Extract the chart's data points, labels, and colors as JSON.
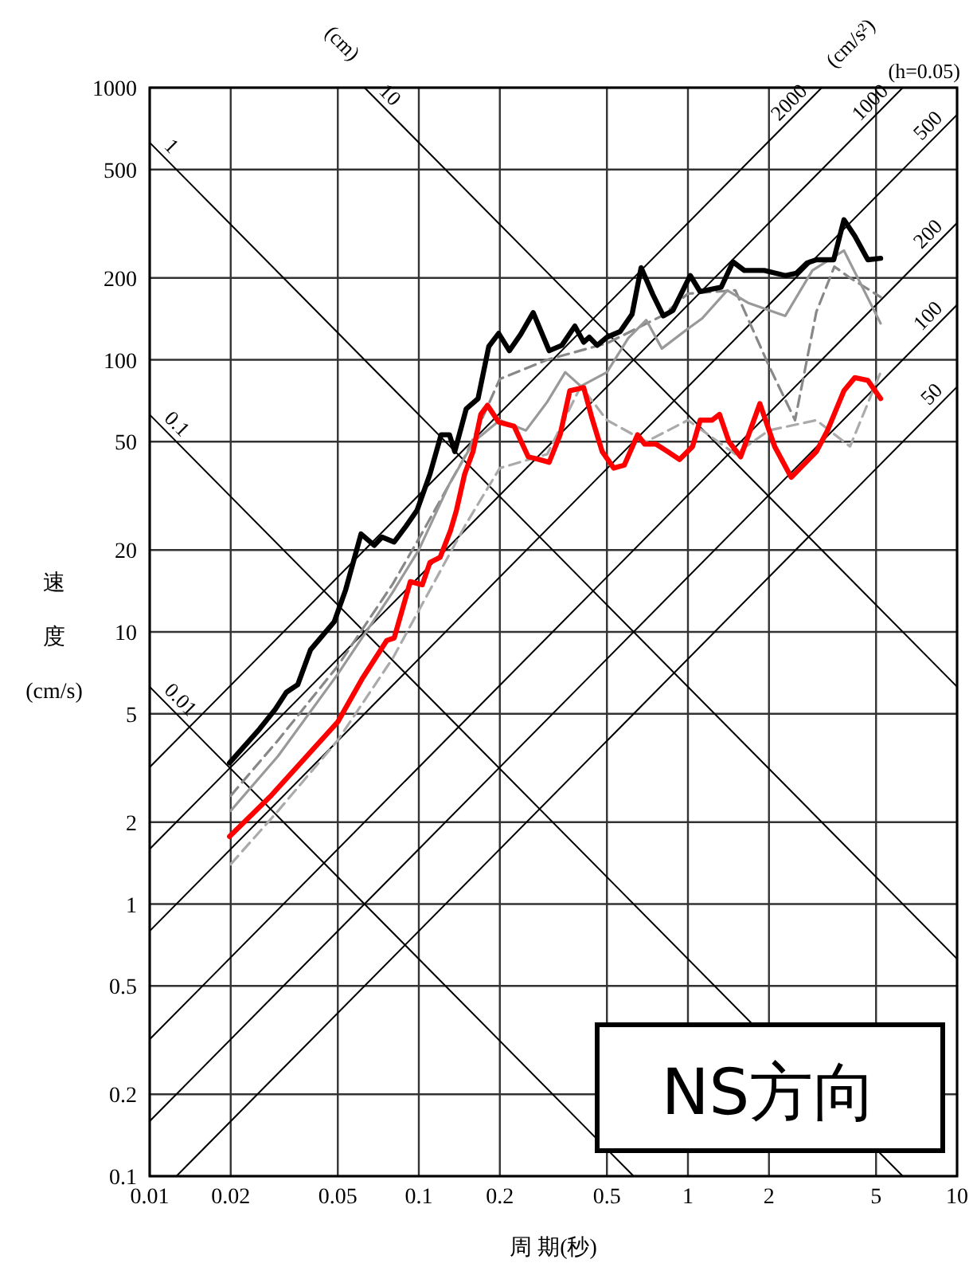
{
  "chart_data": {
    "type": "line",
    "log": "xy",
    "grid": true,
    "xlim": [
      0.01,
      10
    ],
    "ylim": [
      0.1,
      1000
    ],
    "xticks": [
      0.01,
      0.02,
      0.05,
      0.1,
      0.2,
      0.5,
      1,
      2,
      5,
      10
    ],
    "yticks": [
      0.1,
      0.2,
      0.5,
      1,
      2,
      5,
      10,
      20,
      50,
      100,
      200,
      500,
      1000
    ],
    "xlabel": "周 期(秒)",
    "ylabel": "速度(cm/s)",
    "annotations": [
      "(cm)",
      "(cm/s²)",
      "(h=0.05)",
      "NS方向"
    ],
    "series": [
      {
        "color": "#000000",
        "line_style": "solid",
        "x": [
          0.0198,
          0.0256,
          0.0293,
          0.0322,
          0.0355,
          0.0396,
          0.0485,
          0.0535,
          0.061,
          0.0683,
          0.073,
          0.081,
          0.0897,
          0.0985,
          0.11,
          0.121,
          0.13,
          0.136,
          0.15,
          0.166,
          0.182,
          0.198,
          0.217,
          0.239,
          0.266,
          0.305,
          0.34,
          0.38,
          0.41,
          0.43,
          0.46,
          0.5,
          0.56,
          0.62,
          0.67,
          0.74,
          0.81,
          0.88,
          1.02,
          1.11,
          1.33,
          1.47,
          1.62,
          1.92,
          2.3,
          2.53,
          2.77,
          3.0,
          3.48,
          3.8,
          4.17,
          4.66,
          5.2
        ],
        "values": [
          3.3,
          4.4,
          5.2,
          6.0,
          6.4,
          8.6,
          10.9,
          14.3,
          22.9,
          20.8,
          22.3,
          21.4,
          24.5,
          28,
          38,
          53,
          53,
          46,
          66,
          72,
          112,
          125,
          108,
          124,
          149,
          108,
          113,
          133,
          116,
          121,
          113,
          121,
          127,
          147,
          218,
          174,
          145,
          152,
          204,
          178,
          185,
          229,
          213,
          213,
          204,
          208,
          227,
          233,
          233,
          327,
          285,
          233,
          236
        ]
      },
      {
        "color": "#ff0000",
        "line_style": "solid",
        "x": [
          0.0198,
          0.028,
          0.05,
          0.062,
          0.076,
          0.081,
          0.093,
          0.103,
          0.11,
          0.12,
          0.131,
          0.138,
          0.148,
          0.159,
          0.17,
          0.18,
          0.198,
          0.226,
          0.255,
          0.28,
          0.305,
          0.335,
          0.364,
          0.41,
          0.44,
          0.48,
          0.53,
          0.58,
          0.65,
          0.69,
          0.76,
          0.84,
          0.93,
          1.04,
          1.11,
          1.23,
          1.31,
          1.42,
          1.57,
          1.85,
          2.1,
          2.42,
          3.0,
          3.3,
          3.8,
          4.17,
          4.66,
          5.2
        ],
        "values": [
          1.77,
          2.48,
          4.67,
          6.8,
          9.3,
          9.5,
          15.3,
          14.9,
          18,
          18.8,
          23.5,
          28,
          38,
          46,
          63,
          68,
          59,
          57,
          44,
          43,
          42,
          53,
          77,
          79,
          61,
          46,
          40,
          41,
          53,
          49,
          49,
          46,
          43,
          48,
          60,
          60,
          63,
          50,
          44,
          69,
          48,
          37,
          46,
          55,
          77,
          86,
          84,
          72
        ]
      },
      {
        "color": "#999999",
        "line_style": "solid",
        "x": [
          0.02,
          0.03,
          0.05,
          0.08,
          0.1,
          0.13,
          0.16,
          0.2,
          0.25,
          0.3,
          0.35,
          0.4,
          0.5,
          0.6,
          0.7,
          0.8,
          1.0,
          1.13,
          1.4,
          1.67,
          2.3,
          2.9,
          3.8,
          5.2
        ],
        "values": [
          2.2,
          3.5,
          7,
          14,
          20,
          35,
          50,
          60,
          55,
          70,
          90,
          80,
          90,
          120,
          140,
          110,
          130,
          142,
          180,
          162,
          145,
          213,
          252,
          136
        ]
      },
      {
        "color": "#888888",
        "line_style": "dashed",
        "x": [
          0.02,
          0.03,
          0.05,
          0.08,
          0.1,
          0.15,
          0.2,
          0.3,
          0.5,
          0.8,
          1.0,
          1.5,
          2.0,
          2.5,
          3.0,
          3.5,
          4.0,
          5.2
        ],
        "values": [
          2.5,
          4,
          7.5,
          15,
          22,
          45,
          85,
          100,
          115,
          145,
          175,
          180,
          95,
          60,
          150,
          220,
          200,
          170
        ]
      },
      {
        "color": "#aaaaaa",
        "line_style": "dashed",
        "x": [
          0.02,
          0.03,
          0.05,
          0.08,
          0.1,
          0.15,
          0.2,
          0.3,
          0.4,
          0.5,
          0.7,
          1.0,
          1.5,
          2.0,
          3.0,
          4.0,
          5.2
        ],
        "values": [
          1.4,
          2.2,
          4,
          8,
          12,
          25,
          40,
          45,
          80,
          60,
          50,
          60,
          45,
          55,
          60,
          48,
          90
        ]
      },
      {
        "name": "0.01",
        "color": "#000000",
        "line_style": "solid",
        "x": [
          0.01,
          0.6283
        ],
        "values": [
          6.283,
          0.1
        ]
      },
      {
        "name": "0.1",
        "color": "#000000",
        "line_style": "solid",
        "x": [
          0.01,
          6.283
        ],
        "values": [
          62.83,
          0.1
        ]
      },
      {
        "name": "1",
        "color": "#000000",
        "line_style": "solid",
        "x": [
          0.01,
          10
        ],
        "values": [
          628.3,
          0.6283
        ]
      },
      {
        "name": "10",
        "color": "#000000",
        "line_style": "solid",
        "x": [
          0.06283,
          10
        ],
        "values": [
          1000,
          6.283
        ]
      },
      {
        "name": "50",
        "color": "#000000",
        "line_style": "solid",
        "x": [
          0.01257,
          10
        ],
        "values": [
          0.1,
          79.58
        ]
      },
      {
        "name": "100",
        "color": "#000000",
        "line_style": "solid",
        "x": [
          0.01,
          10
        ],
        "values": [
          0.1592,
          159.2
        ]
      },
      {
        "name": "200",
        "color": "#000000",
        "line_style": "solid",
        "x": [
          0.01,
          10
        ],
        "values": [
          0.3183,
          318.3
        ]
      },
      {
        "name": "500",
        "color": "#000000",
        "line_style": "solid",
        "x": [
          0.01,
          10
        ],
        "values": [
          0.7958,
          795.8
        ]
      },
      {
        "name": "1000",
        "color": "#000000",
        "line_style": "solid",
        "x": [
          0.01,
          6.283
        ],
        "values": [
          1.592,
          1000
        ]
      },
      {
        "name": "2000",
        "color": "#000000",
        "line_style": "solid",
        "x": [
          0.01,
          3.142
        ],
        "values": [
          3.183,
          1000
        ]
      }
    ]
  }
}
